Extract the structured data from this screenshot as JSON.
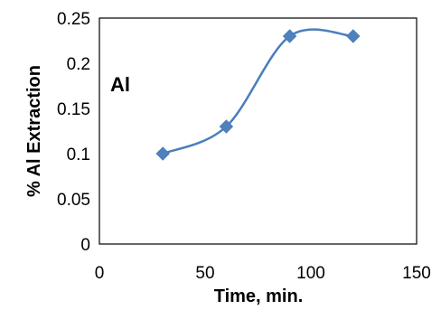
{
  "chart_data": {
    "type": "scatter",
    "smooth": true,
    "xlabel": "Time, min.",
    "ylabel": "% Al Extraction",
    "xlim": [
      0,
      150
    ],
    "ylim": [
      0,
      0.25
    ],
    "x_ticks": [
      "0",
      "50",
      "100",
      "150"
    ],
    "y_ticks": [
      "0",
      "0.05",
      "0.1",
      "0.15",
      "0.2",
      "0.25"
    ],
    "grid": false,
    "legend": "none",
    "annotation": "Al",
    "marker": "diamond",
    "series_color": "#4A7EBB",
    "marker_color": "#4F81BD",
    "series": [
      {
        "x": [
          30,
          60,
          90,
          120
        ],
        "y": [
          0.1,
          0.13,
          0.23,
          0.23
        ]
      }
    ]
  }
}
